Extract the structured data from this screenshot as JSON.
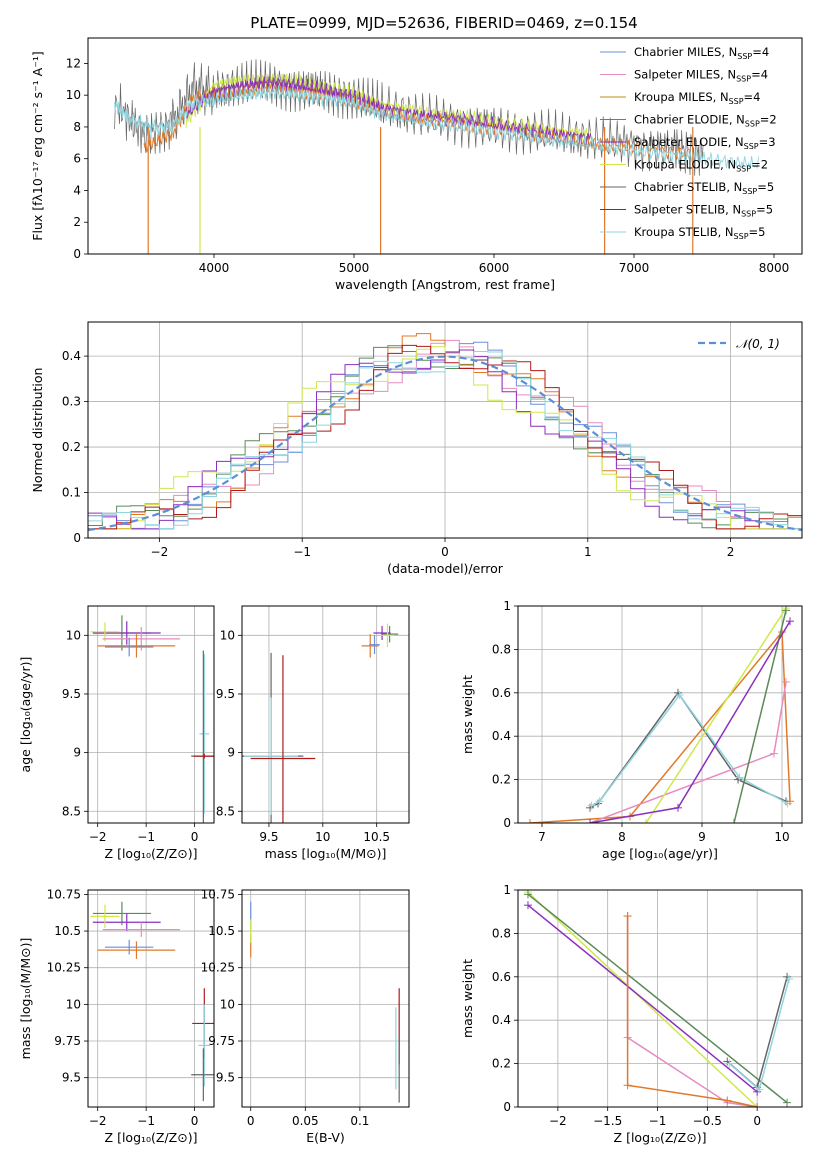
{
  "suptitle": "PLATE=0999, MJD=52636, FIBERID=0469, z=0.154",
  "colors": {
    "chabrier_miles": "#6f8fd9",
    "salpeter_miles": "#e58cc0",
    "kroupa_miles": "#c68a1f",
    "chabrier_elodie": "#5a8a5a",
    "salpeter_elodie": "#8c2fbf",
    "kroupa_elodie": "#cfe84a",
    "chabrier_stelib": "#666666",
    "salpeter_stelib": "#b01a1a",
    "kroupa_stelib": "#8fd6e0",
    "orange_model": "#e07a2a",
    "gauss": "#5b8fd6"
  },
  "chart_data": [
    {
      "id": "spectrum",
      "type": "line",
      "title": "PLATE=0999, MJD=52636, FIBERID=0469, z=0.154",
      "xlabel": "wavelength [Angstrom, rest frame]",
      "ylabel": "Flux [fλ10⁻¹⁷ erg cm⁻² s⁻¹ A⁻¹]",
      "xlim": [
        3100,
        8200
      ],
      "ylim": [
        0,
        13.6
      ],
      "xticks": [
        4000,
        5000,
        6000,
        7000,
        8000
      ],
      "yticks": [
        0,
        2,
        4,
        6,
        8,
        10,
        12
      ],
      "legend_position": "right",
      "legend": [
        {
          "label": "Chabrier MILES, N",
          "sub": "SSP",
          "tail": "=4",
          "color": "chabrier_miles"
        },
        {
          "label": "Salpeter MILES, N",
          "sub": "SSP",
          "tail": "=4",
          "color": "salpeter_miles"
        },
        {
          "label": "Kroupa MILES, N",
          "sub": "SSP",
          "tail": "=4",
          "color": "kroupa_miles"
        },
        {
          "label": "Chabrier ELODIE, N",
          "sub": "SSP",
          "tail": "=2",
          "color": "chabrier_elodie"
        },
        {
          "label": "Salpeter ELODIE, N",
          "sub": "SSP",
          "tail": "=3",
          "color": "salpeter_elodie"
        },
        {
          "label": "Kroupa ELODIE, N",
          "sub": "SSP",
          "tail": "=2",
          "color": "kroupa_elodie"
        },
        {
          "label": "Chabrier STELIB, N",
          "sub": "SSP",
          "tail": "=5",
          "color": "chabrier_stelib"
        },
        {
          "label": "Salpeter STELIB, N",
          "sub": "SSP",
          "tail": "=5",
          "color": "salpeter_stelib"
        },
        {
          "label": "Kroupa STELIB, N",
          "sub": "SSP",
          "tail": "=5",
          "color": "kroupa_stelib"
        }
      ],
      "series": [
        {
          "color": "chabrier_stelib",
          "x": [
            3290,
            3500,
            3700,
            3850,
            4000,
            4200,
            4400,
            4600,
            4800,
            5000,
            5200,
            5500,
            5800,
            6100,
            6400,
            6700,
            7000,
            7300,
            7500
          ],
          "y": [
            9.5,
            7.5,
            8.2,
            10.5,
            10.2,
            10.6,
            10.8,
            10.5,
            10.3,
            9.9,
            9.2,
            8.6,
            8.3,
            7.9,
            7.5,
            7.2,
            6.9,
            6.6,
            6.4
          ]
        },
        {
          "color": "kroupa_elodie",
          "x": [
            3800,
            4000,
            4200,
            4400,
            4600,
            4800,
            5000,
            5200,
            5500,
            5800,
            6100,
            6400,
            6700
          ],
          "y": [
            8.3,
            10.6,
            10.9,
            11.0,
            10.8,
            10.5,
            10.1,
            9.4,
            8.9,
            8.6,
            8.2,
            7.8,
            7.5
          ]
        },
        {
          "color": "orange_model",
          "x": [
            3500,
            3700,
            3850,
            4000,
            4200,
            4400,
            4600,
            4800,
            5000,
            5200,
            5500,
            5800,
            6100,
            6400,
            6700,
            7000,
            7400
          ],
          "y": [
            6.7,
            7.6,
            9.8,
            10.0,
            10.3,
            10.5,
            10.3,
            10.1,
            9.7,
            9.0,
            8.5,
            8.2,
            7.8,
            7.4,
            7.0,
            6.7,
            6.3
          ]
        },
        {
          "color": "salpeter_elodie",
          "x": [
            3800,
            4000,
            4200,
            4400,
            4600,
            4800,
            5000,
            5200,
            5500,
            5800,
            6100,
            6400,
            6700
          ],
          "y": [
            8.8,
            10.2,
            10.6,
            10.8,
            10.6,
            10.3,
            9.9,
            9.2,
            8.7,
            8.4,
            8.0,
            7.6,
            7.3
          ]
        },
        {
          "color": "kroupa_stelib",
          "x": [
            3290,
            3400,
            3550,
            3700,
            3850,
            4000,
            4200,
            4400,
            4600,
            4800,
            5000,
            5200,
            5500,
            5800,
            6100,
            6400,
            6700,
            7000,
            7300,
            7600,
            7900
          ],
          "y": [
            9.4,
            8.5,
            8.0,
            8.0,
            9.5,
            9.7,
            10.0,
            10.2,
            10.0,
            9.8,
            9.5,
            8.8,
            8.3,
            8.0,
            7.6,
            7.2,
            6.9,
            6.5,
            6.2,
            5.9,
            5.6
          ]
        }
      ],
      "drops": [
        {
          "x": 3530,
          "color": "orange_model"
        },
        {
          "x": 3900,
          "color": "kroupa_elodie"
        },
        {
          "x": 5190,
          "color": "orange_model"
        },
        {
          "x": 6790,
          "color": "orange_model"
        },
        {
          "x": 7420,
          "color": "orange_model"
        }
      ]
    },
    {
      "id": "residuals",
      "type": "line",
      "xlabel": "(data-model)/error",
      "ylabel": "Normed distribution",
      "xlim": [
        -2.5,
        2.5
      ],
      "ylim": [
        0,
        0.475
      ],
      "xticks": [
        -2,
        -1,
        0,
        1,
        2
      ],
      "yticks": [
        0.0,
        0.1,
        0.2,
        0.3,
        0.4
      ],
      "grid": true,
      "legend_position": "top-right",
      "legend": [
        {
          "label": "𝒩(0, 1)",
          "color": "gauss",
          "dashed": true
        }
      ],
      "gauss": {
        "mu": 0,
        "sigma": 1
      },
      "bin_width": 0.1,
      "series": [
        {
          "color": "chabrier_miles",
          "offset": 0.0,
          "amp": 0.41,
          "sigma": 0.95
        },
        {
          "color": "salpeter_miles",
          "offset": 0.02,
          "amp": 0.4,
          "sigma": 0.98
        },
        {
          "color": "orange_model",
          "offset": -0.05,
          "amp": 0.42,
          "sigma": 0.93
        },
        {
          "color": "chabrier_elodie",
          "offset": -0.1,
          "amp": 0.41,
          "sigma": 0.97
        },
        {
          "color": "salpeter_elodie",
          "offset": -0.15,
          "amp": 0.4,
          "sigma": 0.95
        },
        {
          "color": "kroupa_elodie",
          "offset": -0.2,
          "amp": 0.39,
          "sigma": 1.0
        },
        {
          "color": "salpeter_stelib",
          "offset": 0.05,
          "amp": 0.41,
          "sigma": 0.94
        },
        {
          "color": "kroupa_stelib",
          "offset": 0.0,
          "amp": 0.4,
          "sigma": 0.96
        }
      ]
    },
    {
      "id": "age_vs_z",
      "type": "scatter",
      "xlabel": "Z [log₁₀(Z/Z⊙)]",
      "ylabel": "age  [log₁₀(age/yr)]",
      "xlim": [
        -2.2,
        0.4
      ],
      "ylim": [
        8.4,
        10.25
      ],
      "xticks": [
        -2,
        -1,
        0
      ],
      "yticks": [
        8.5,
        9.0,
        9.5,
        10.0
      ],
      "grid": true,
      "points": [
        {
          "color": "chabrier_elodie",
          "x": -1.5,
          "y": 10.02,
          "xerr": 0.6,
          "yerr": 0.15
        },
        {
          "color": "salpeter_elodie",
          "x": -1.4,
          "y": 10.02,
          "xerr": 0.7,
          "yerr": 0.1
        },
        {
          "color": "kroupa_elodie",
          "x": -1.85,
          "y": 10.03,
          "xerr": 0.3,
          "yerr": 0.08
        },
        {
          "color": "salpeter_miles",
          "x": -1.1,
          "y": 9.97,
          "xerr": 0.8,
          "yerr": 0.1
        },
        {
          "color": "orange_model",
          "x": -1.2,
          "y": 9.91,
          "xerr": 0.8,
          "yerr": 0.1
        },
        {
          "color": "chabrier_miles",
          "x": -1.35,
          "y": 9.9,
          "xerr": 0.5,
          "yerr": 0.08
        },
        {
          "color": "kroupa_stelib",
          "x": 0.2,
          "y": 9.16,
          "xerr": 0.1,
          "yerr": 0.68
        },
        {
          "color": "chabrier_stelib",
          "x": 0.18,
          "y": 8.97,
          "xerr": 0.25,
          "yerr": 0.9
        },
        {
          "color": "salpeter_stelib",
          "x": 0.2,
          "y": 8.97,
          "xerr": 0.22,
          "yerr": 0.02
        }
      ]
    },
    {
      "id": "age_vs_mass",
      "type": "scatter",
      "xlabel": "mass [log₁₀(M/M⊙)]",
      "ylabel": "",
      "xlim": [
        9.25,
        10.8
      ],
      "ylim": [
        8.4,
        10.25
      ],
      "xticks": [
        9.5,
        10.0,
        10.5
      ],
      "yticks": [
        8.5,
        9.0,
        9.5,
        10.0
      ],
      "grid": true,
      "points": [
        {
          "color": "chabrier_elodie",
          "x": 10.62,
          "y": 10.01,
          "xerr": 0.08,
          "yerr": 0.07
        },
        {
          "color": "salpeter_elodie",
          "x": 10.55,
          "y": 10.02,
          "xerr": 0.08,
          "yerr": 0.06
        },
        {
          "color": "kroupa_elodie",
          "x": 10.6,
          "y": 10.0,
          "xerr": 0.06,
          "yerr": 0.1
        },
        {
          "color": "orange_model",
          "x": 10.44,
          "y": 9.91,
          "xerr": 0.08,
          "yerr": 0.1
        },
        {
          "color": "chabrier_miles",
          "x": 10.48,
          "y": 9.92,
          "xerr": 0.05,
          "yerr": 0.08
        },
        {
          "color": "chabrier_stelib",
          "x": 9.52,
          "y": 8.97,
          "xerr": 0.3,
          "yerr": 0.88
        },
        {
          "color": "kroupa_stelib",
          "x": 9.52,
          "y": 8.97,
          "xerr": 0.25,
          "yerr": 0.5
        },
        {
          "color": "salpeter_stelib",
          "x": 9.63,
          "y": 8.95,
          "xerr": 0.3,
          "yerr": 0.88
        }
      ]
    },
    {
      "id": "weight_vs_age",
      "type": "line",
      "xlabel": "age  [log₁₀(age/yr)]",
      "ylabel": "mass weight",
      "xlim": [
        6.7,
        10.25
      ],
      "ylim": [
        0,
        1.0
      ],
      "xticks": [
        7,
        8,
        9,
        10
      ],
      "yticks": [
        0.0,
        0.2,
        0.4,
        0.6,
        0.8,
        1.0
      ],
      "grid": true,
      "series": [
        {
          "color": "chabrier_stelib",
          "x": [
            7.6,
            7.7,
            8.7,
            9.45,
            10.05
          ],
          "y": [
            0.07,
            0.09,
            0.6,
            0.2,
            0.1
          ]
        },
        {
          "color": "kroupa_stelib",
          "x": [
            7.62,
            7.72,
            8.72,
            9.47,
            10.07
          ],
          "y": [
            0.08,
            0.1,
            0.59,
            0.21,
            0.09
          ]
        },
        {
          "color": "orange_model",
          "x": [
            6.85,
            8.1,
            10.0,
            10.1
          ],
          "y": [
            0.0,
            0.03,
            0.88,
            0.1
          ]
        },
        {
          "color": "salpeter_miles",
          "x": [
            7.6,
            9.9,
            10.05
          ],
          "y": [
            0.0,
            0.32,
            0.65
          ]
        },
        {
          "color": "kroupa_elodie",
          "x": [
            8.3,
            10.05
          ],
          "y": [
            0.0,
            0.99
          ]
        },
        {
          "color": "chabrier_elodie",
          "x": [
            9.4,
            10.05
          ],
          "y": [
            0.0,
            0.98
          ]
        },
        {
          "color": "salpeter_elodie",
          "x": [
            7.6,
            8.7,
            10.1
          ],
          "y": [
            0.0,
            0.07,
            0.93
          ]
        }
      ]
    },
    {
      "id": "mass_vs_z",
      "type": "scatter",
      "xlabel": "Z [log₁₀(Z/Z⊙)]",
      "ylabel": "mass [log₁₀(M/M⊙)]",
      "xlim": [
        -2.2,
        0.4
      ],
      "ylim": [
        9.3,
        10.78
      ],
      "xticks": [
        -2,
        -1,
        0
      ],
      "yticks": [
        9.5,
        9.75,
        10.0,
        10.25,
        10.5,
        10.75
      ],
      "grid": true,
      "points": [
        {
          "color": "chabrier_elodie",
          "x": -1.5,
          "y": 10.62,
          "xerr": 0.6,
          "yerr": 0.08
        },
        {
          "color": "salpeter_elodie",
          "x": -1.4,
          "y": 10.56,
          "xerr": 0.7,
          "yerr": 0.06
        },
        {
          "color": "kroupa_elodie",
          "x": -1.85,
          "y": 10.6,
          "xerr": 0.3,
          "yerr": 0.08
        },
        {
          "color": "salpeter_miles",
          "x": -1.1,
          "y": 10.51,
          "xerr": 0.8,
          "yerr": 0.05
        },
        {
          "color": "orange_model",
          "x": -1.2,
          "y": 10.37,
          "xerr": 0.8,
          "yerr": 0.06
        },
        {
          "color": "chabrier_miles",
          "x": -1.35,
          "y": 10.39,
          "xerr": 0.5,
          "yerr": 0.05
        },
        {
          "color": "salpeter_stelib",
          "x": 0.2,
          "y": 9.87,
          "xerr": 0.25,
          "yerr": 0.24
        },
        {
          "color": "kroupa_stelib",
          "x": 0.2,
          "y": 9.72,
          "xerr": 0.12,
          "yerr": 0.28
        },
        {
          "color": "chabrier_stelib",
          "x": 0.18,
          "y": 9.52,
          "xerr": 0.25,
          "yerr": 0.18
        }
      ]
    },
    {
      "id": "mass_vs_ebv",
      "type": "scatter",
      "xlabel": "E(B-V)",
      "ylabel": "",
      "xlim": [
        -0.008,
        0.145
      ],
      "ylim": [
        9.3,
        10.78
      ],
      "xticks": [
        0.0,
        0.05,
        0.1
      ],
      "yticks": [
        9.5,
        9.75,
        10.0,
        10.25,
        10.5,
        10.75
      ],
      "grid": true,
      "points": [
        {
          "color": "chabrier_miles",
          "x": 0.0,
          "y": 10.6,
          "xerr": 0.0,
          "yerr": 0.1
        },
        {
          "color": "orange_model",
          "x": 0.0,
          "y": 10.4,
          "xerr": 0.0,
          "yerr": 0.08
        },
        {
          "color": "kroupa_elodie",
          "x": 0.0,
          "y": 10.5,
          "xerr": 0.0,
          "yerr": 0.08
        },
        {
          "color": "kroupa_stelib",
          "x": 0.133,
          "y": 9.7,
          "xerr": 0.0,
          "yerr": 0.28
        },
        {
          "color": "salpeter_stelib",
          "x": 0.136,
          "y": 9.85,
          "xerr": 0.0,
          "yerr": 0.26
        },
        {
          "color": "chabrier_stelib",
          "x": 0.136,
          "y": 9.55,
          "xerr": 0.0,
          "yerr": 0.22
        }
      ]
    },
    {
      "id": "weight_vs_z",
      "type": "line",
      "xlabel": "Z [log₁₀(Z/Z⊙)]",
      "ylabel": "mass weight",
      "xlim": [
        -2.4,
        0.45
      ],
      "ylim": [
        0,
        1.0
      ],
      "xticks": [
        -2.0,
        -1.5,
        -1.0,
        -0.5,
        0.0
      ],
      "yticks": [
        0.0,
        0.2,
        0.4,
        0.6,
        0.8,
        1.0
      ],
      "grid": true,
      "series": [
        {
          "color": "kroupa_elodie",
          "x": [
            -2.3,
            0.0
          ],
          "y": [
            0.99,
            0.0
          ]
        },
        {
          "color": "salpeter_elodie",
          "x": [
            -2.3,
            0.0
          ],
          "y": [
            0.93,
            0.07
          ]
        },
        {
          "color": "chabrier_elodie",
          "x": [
            -2.3,
            0.3
          ],
          "y": [
            0.98,
            0.02
          ]
        },
        {
          "color": "salpeter_miles",
          "x": [
            -1.3,
            -1.3,
            -0.3,
            0.0
          ],
          "y": [
            0.88,
            0.32,
            0.02,
            0.0
          ]
        },
        {
          "color": "orange_model",
          "x": [
            -1.3,
            -1.3,
            -0.3,
            0.0
          ],
          "y": [
            0.88,
            0.1,
            0.03,
            0.0
          ]
        },
        {
          "color": "chabrier_stelib",
          "x": [
            -0.3,
            0.0,
            0.3
          ],
          "y": [
            0.21,
            0.09,
            0.6
          ]
        },
        {
          "color": "kroupa_stelib",
          "x": [
            -0.28,
            0.02,
            0.32
          ],
          "y": [
            0.2,
            0.08,
            0.59
          ]
        }
      ]
    }
  ]
}
